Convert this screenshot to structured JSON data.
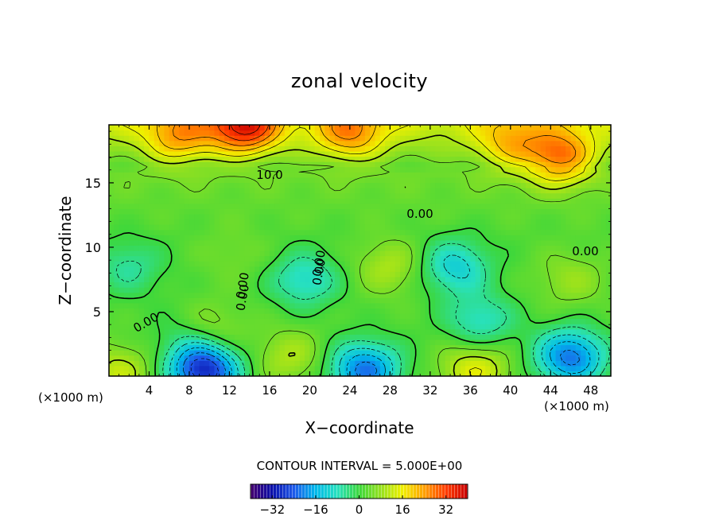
{
  "chart_data": {
    "type": "heatmap",
    "title": "zonal velocity",
    "xlabel": "X−coordinate",
    "ylabel": "Z−coordinate",
    "x_unit_left": "(×1000 m)",
    "x_unit_right": "(×1000 m)",
    "xlim": [
      0,
      50
    ],
    "ylim": [
      0,
      19.5
    ],
    "x_ticks": [
      4,
      8,
      12,
      16,
      20,
      24,
      28,
      32,
      36,
      40,
      44,
      48
    ],
    "y_ticks": [
      5,
      10,
      15
    ],
    "contour_interval_label": "CONTOUR INTERVAL = 5.000E+00",
    "contour_interval": 5,
    "contour_labels": [
      "10.0",
      "0.00",
      "0.00",
      "0.00",
      "0.00",
      "0.00",
      "0.00",
      "0.00"
    ],
    "colorbar": {
      "min": -40,
      "max": 40,
      "ticks": [
        -32,
        -16,
        0,
        16,
        32
      ],
      "tick_labels": [
        "−32",
        "−16",
        "0",
        "16",
        "32"
      ]
    },
    "features": [
      {
        "x": 13.5,
        "z": 19.3,
        "value": 28
      },
      {
        "x": 7,
        "z": 18.5,
        "value": 17
      },
      {
        "x": 24,
        "z": 18.8,
        "value": 18
      },
      {
        "x": 45,
        "z": 17,
        "value": 24
      },
      {
        "x": 40,
        "z": 18,
        "value": 15
      },
      {
        "x": 2,
        "z": 8.5,
        "value": -6
      },
      {
        "x": 8,
        "z": 3,
        "value": -4
      },
      {
        "x": 9.5,
        "z": 0.5,
        "value": -30
      },
      {
        "x": 19.5,
        "z": 7.5,
        "value": -10
      },
      {
        "x": 25.5,
        "z": 0.5,
        "value": -22
      },
      {
        "x": 34.5,
        "z": 8.5,
        "value": -12
      },
      {
        "x": 37,
        "z": 4.3,
        "value": -9
      },
      {
        "x": 46,
        "z": 1.5,
        "value": -22
      },
      {
        "x": 28,
        "z": 8.5,
        "value": 10
      },
      {
        "x": 12.5,
        "z": 9.5,
        "value": 5
      },
      {
        "x": 46,
        "z": 7.5,
        "value": 8
      },
      {
        "x": 10,
        "z": 3.5,
        "value": 10
      },
      {
        "x": 18,
        "z": 1.5,
        "value": 10
      },
      {
        "x": 36.5,
        "z": 0.5,
        "value": 15
      },
      {
        "x": 1,
        "z": 0.3,
        "value": 12
      }
    ]
  }
}
